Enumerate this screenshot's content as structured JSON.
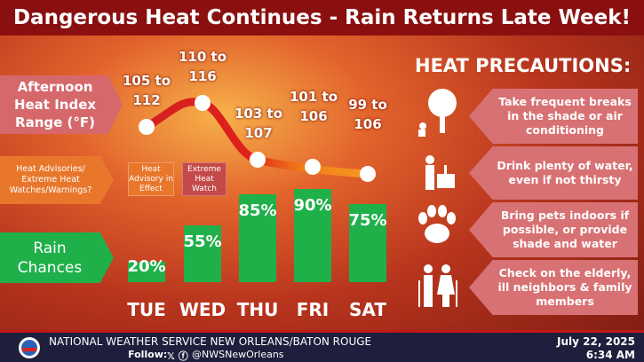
{
  "header": {
    "title": "Dangerous Heat Continues - Rain Returns Late Week!"
  },
  "heat_index": {
    "label": "Afternoon Heat Index Range (°F)",
    "ranges": [
      "105 to 112",
      "110 to 116",
      "103 to 107",
      "101 to 106",
      "99 to 106"
    ]
  },
  "advisories": {
    "label": "Heat Advisories/ Extreme Heat Watches/Warnings?",
    "badges": [
      "Heat Advisory in Effect",
      "Extreme Heat Watch"
    ]
  },
  "chart_data": {
    "type": "bar",
    "title": "Rain Chances",
    "categories": [
      "TUE",
      "WED",
      "THU",
      "FRI",
      "SAT"
    ],
    "values": [
      20,
      55,
      85,
      90,
      75
    ],
    "value_labels": [
      "20%",
      "55%",
      "85%",
      "90%",
      "75%"
    ],
    "color": "#1fb04a"
  },
  "precautions": {
    "title": "HEAT PRECAUTIONS:",
    "items": [
      "Take frequent breaks in the shade or air conditioning",
      "Drink plenty of water, even if not thirsty",
      "Bring pets indoors if possible, or provide shade and water",
      "Check on the elderly, ill neighbors & family members"
    ]
  },
  "footer": {
    "office": "NATIONAL WEATHER SERVICE NEW ORLEANS/BATON ROUGE",
    "follow": "Follow:",
    "handle": "@NWSNewOrleans",
    "date": "July 22, 2025",
    "time": "6:34 AM"
  }
}
